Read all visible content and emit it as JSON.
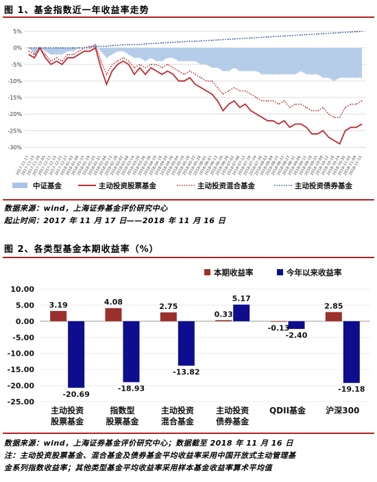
{
  "figure1": {
    "title": "图 1、基金指数近一年收益率走势",
    "source": "数据来源：wind，上海证券基金评价研究中心",
    "period": "起止时间：2017 年 11 月 17 日——2018 年 11 月 16 日"
  },
  "figure2": {
    "title": "图 2、各类型基金本期收益率（%）",
    "source": "数据来源：wind，上海证券基金评价研究中心；数据截至 2018 年 11 月 16 日",
    "note_line1": "注：主动投资股票基金、混合基金及债券基金平均收益率采用中国开放式主动管理基",
    "note_line2": "金系列指数收益率；其他类型基金平均收益率采用样本基金收益率算术平均值"
  },
  "chart_data": [
    {
      "type": "line",
      "yticks": [
        "5%",
        "0%",
        "-5%",
        "-10%",
        "-15%",
        "-20%",
        "-25%",
        "-30%"
      ],
      "ylim": [
        -32,
        7
      ],
      "xtick_labels": [
        "2017-11-17",
        "2017-11-23",
        "2017-11-29",
        "2017-12-05",
        "2017-12-11",
        "2017-12-15",
        "2017-12-21",
        "2017-12-27",
        "2018-01-03",
        "2018-01-09",
        "2018-01-15",
        "2018-01-19",
        "2018-01-25",
        "2018-01-31",
        "2018-02-06",
        "2018-02-12",
        "2018-02-26",
        "2018-03-02",
        "2018-03-08",
        "2018-03-14",
        "2018-03-20",
        "2018-03-26",
        "2018-03-30",
        "2018-04-10",
        "2018-04-16",
        "2018-04-20",
        "2018-04-26",
        "2018-05-04",
        "2018-05-10",
        "2018-05-16",
        "2018-05-22",
        "2018-05-28",
        "2018-06-01",
        "2018-06-07",
        "2018-06-13",
        "2018-06-20",
        "2018-06-26",
        "2018-07-02",
        "2018-07-06",
        "2018-07-12",
        "2018-07-18",
        "2018-07-24",
        "2018-07-30",
        "2018-08-03",
        "2018-08-09",
        "2018-08-15",
        "2018-08-21",
        "2018-08-27",
        "2018-08-31",
        "2018-09-06",
        "2018-09-12",
        "2018-09-18",
        "2018-09-25",
        "2018-10-08",
        "2018-10-12",
        "2018-10-18",
        "2018-10-24",
        "2018-10-30",
        "2018-11-05",
        "2018-11-09",
        "2018-11-15"
      ],
      "series": [
        {
          "name": "中证基金",
          "style": "area",
          "color": "#a9c4e6",
          "values": [
            0,
            -2,
            0,
            -1,
            -2,
            -2,
            -2,
            -1,
            -1,
            0,
            0,
            0,
            1,
            -1,
            -3,
            -2,
            -1,
            -1,
            -2,
            -3,
            -3,
            -4,
            -3,
            -4,
            -4,
            -3,
            -3,
            -4,
            -4,
            -4,
            -4,
            -5,
            -5,
            -6,
            -6,
            -7,
            -7,
            -6,
            -7,
            -7,
            -7,
            -7,
            -8,
            -8,
            -8,
            -8,
            -8,
            -8,
            -8,
            -7,
            -8,
            -8,
            -8,
            -9,
            -9,
            -10,
            -9,
            -9,
            -9,
            -9,
            -9
          ]
        },
        {
          "name": "主动投资股票基金",
          "style": "solid",
          "color": "#c0272d",
          "values": [
            -2,
            -3,
            0,
            -3,
            -5,
            -4,
            -5,
            -3,
            -3,
            -2,
            -1,
            -1,
            0,
            -6,
            -11,
            -7,
            -5,
            -4,
            -5,
            -8,
            -6,
            -8,
            -6,
            -7,
            -8,
            -7,
            -8,
            -10,
            -10,
            -9,
            -11,
            -12,
            -13,
            -14,
            -16,
            -19,
            -17,
            -16,
            -18,
            -17,
            -19,
            -20,
            -21,
            -22,
            -22,
            -23,
            -22,
            -24,
            -23,
            -23,
            -24,
            -26,
            -26,
            -25,
            -27,
            -28,
            -29,
            -25,
            -24,
            -24,
            -23
          ]
        },
        {
          "name": "主动投资混合基金",
          "style": "dotted",
          "color": "#c0272d",
          "values": [
            -1,
            -2,
            0,
            -2,
            -4,
            -3,
            -4,
            -2,
            -2,
            -1,
            0,
            0,
            1,
            -4,
            -8,
            -5,
            -4,
            -3,
            -4,
            -6,
            -5,
            -6,
            -5,
            -5,
            -6,
            -5,
            -6,
            -7,
            -8,
            -7,
            -8,
            -9,
            -10,
            -10,
            -12,
            -14,
            -13,
            -12,
            -13,
            -13,
            -14,
            -15,
            -16,
            -16,
            -16,
            -17,
            -16,
            -18,
            -17,
            -17,
            -18,
            -19,
            -19,
            -18,
            -20,
            -21,
            -21,
            -18,
            -17,
            -17,
            -16
          ]
        },
        {
          "name": "主动投资债券基金",
          "style": "dotted",
          "color": "#2a4a9e",
          "values": [
            0,
            0,
            0,
            0,
            0,
            0,
            0,
            0,
            0,
            0,
            0,
            0.5,
            0.5,
            0.5,
            0.5,
            0.7,
            0.8,
            0.9,
            1,
            1,
            1,
            1.2,
            1.3,
            1.4,
            1.5,
            1.6,
            1.7,
            1.8,
            1.9,
            2,
            2,
            2.1,
            2.2,
            2.3,
            2.4,
            2.5,
            2.6,
            2.7,
            2.8,
            2.9,
            3,
            3.1,
            3.2,
            3.3,
            3.4,
            3.5,
            3.6,
            3.7,
            3.8,
            3.9,
            4,
            4.1,
            4.2,
            4.3,
            4.4,
            4.5,
            4.6,
            4.7,
            4.8,
            4.9,
            5
          ]
        }
      ]
    },
    {
      "type": "bar",
      "categories": [
        [
          "主动投资",
          "股票基金"
        ],
        [
          "指数型",
          "股票基金"
        ],
        [
          "主动投资",
          "混合基金"
        ],
        [
          "主动投资",
          "债券基金"
        ],
        [
          "QDII基金"
        ],
        [
          "沪深300"
        ]
      ],
      "yticks": [
        "10.00",
        "5.00",
        "0.00",
        "-5.00",
        "-10.00",
        "-15.00",
        "-20.00",
        "-25.00"
      ],
      "ylim": [
        -25,
        10
      ],
      "series": [
        {
          "name": "本期收益率",
          "color": "#9b2f2c",
          "values": [
            3.19,
            4.08,
            2.75,
            0.33,
            -0.13,
            2.85
          ],
          "labels": [
            "3.19",
            "4.08",
            "2.75",
            "0.33",
            "-0.13",
            "2.85"
          ]
        },
        {
          "name": "今年以来收益率",
          "color": "#0d0d8e",
          "values": [
            -20.69,
            -18.93,
            -13.82,
            5.17,
            -2.4,
            -19.18
          ],
          "labels": [
            "-20.69",
            "-18.93",
            "-13.82",
            "5.17",
            "-2.40",
            "-19.18"
          ]
        }
      ]
    }
  ]
}
